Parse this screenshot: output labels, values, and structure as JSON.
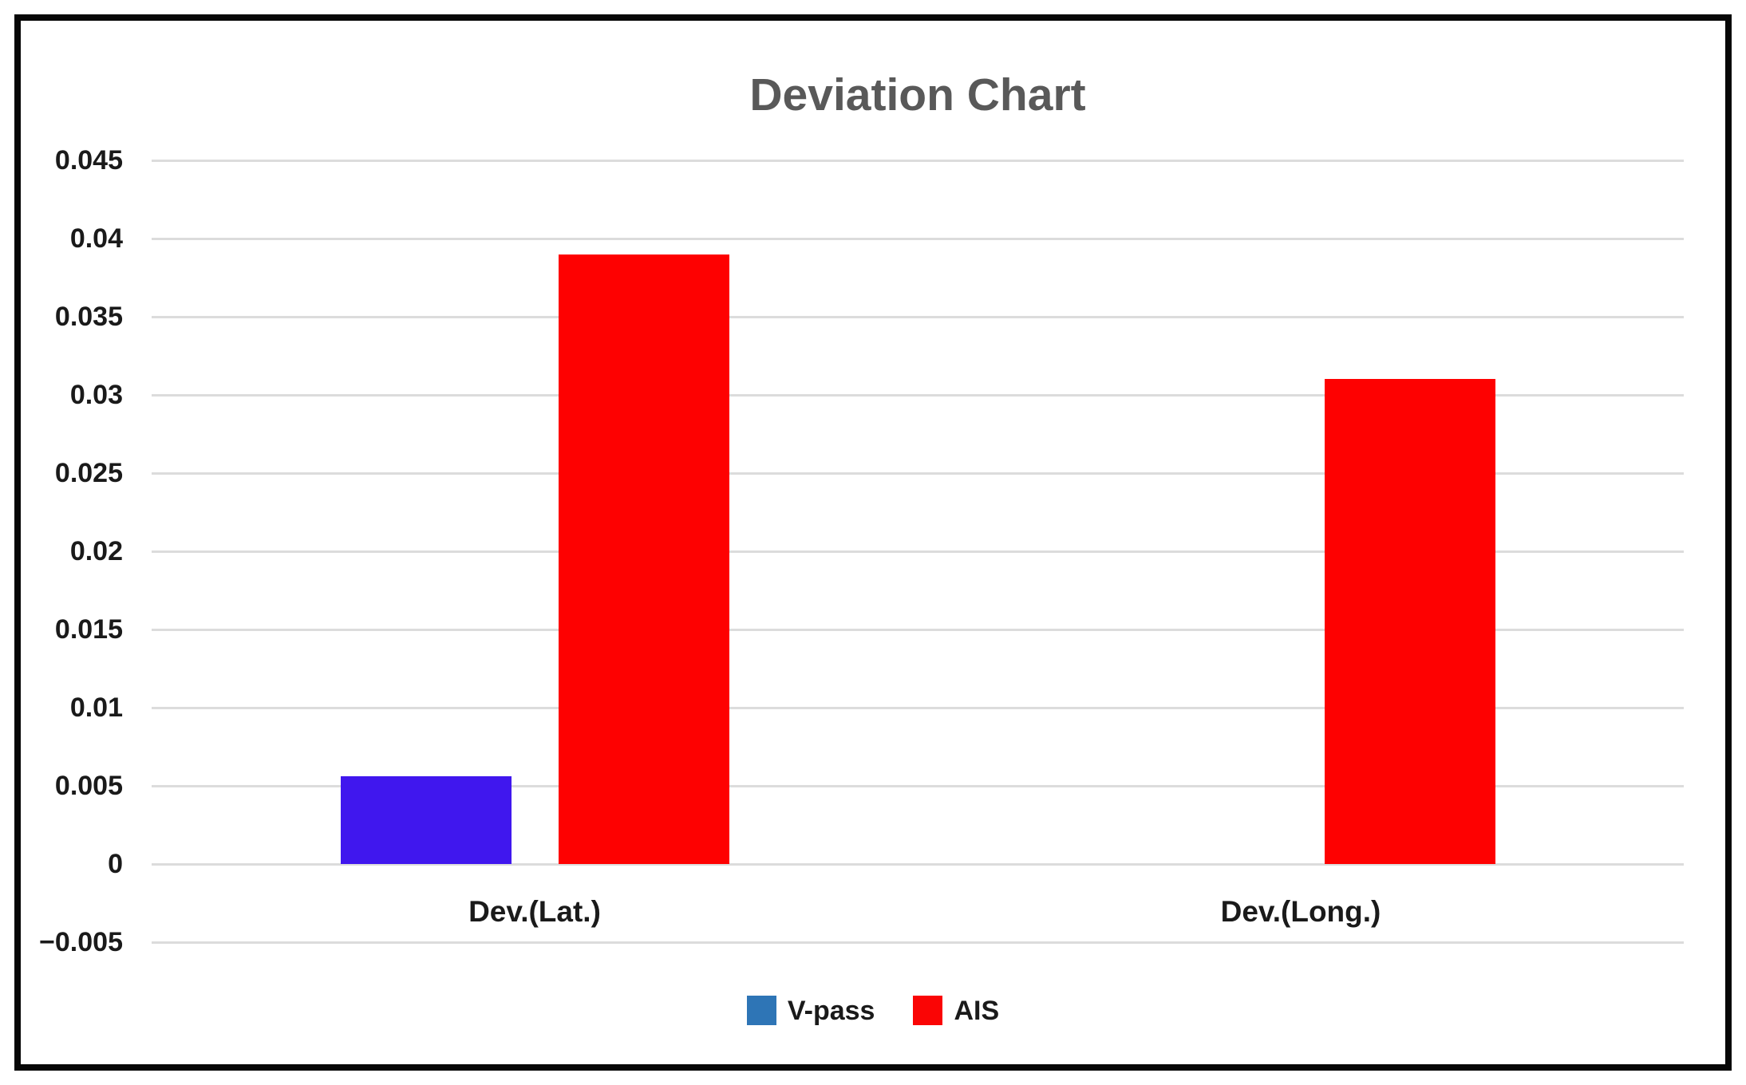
{
  "chart_data": {
    "type": "bar",
    "title": "Deviation Chart",
    "title_color": "#595959",
    "categories": [
      "Dev.(Lat.)",
      "Dev.(Long.)"
    ],
    "series": [
      {
        "name": "V-pass",
        "color": "#4017ee",
        "values": [
          0.0056,
          0
        ]
      },
      {
        "name": "AIS",
        "color": "#fe0101",
        "values": [
          0.039,
          0.031
        ]
      }
    ],
    "y_tick_labels": [
      "0.045",
      "0.04",
      "0.035",
      "0.03",
      "0.025",
      "0.02",
      "0.015",
      "0.01",
      "0.005",
      "0",
      "−0.005"
    ],
    "ylim": [
      -0.005,
      0.045
    ],
    "y_tick_step": 0.005,
    "grid": "horizontal",
    "gridline_color": "#dcdcdc",
    "legend_position": "bottom",
    "legend": {
      "items": [
        {
          "label": "V-pass",
          "swatch": "#2e75b6"
        },
        {
          "label": "AIS",
          "swatch": "#fa0505"
        }
      ]
    }
  }
}
